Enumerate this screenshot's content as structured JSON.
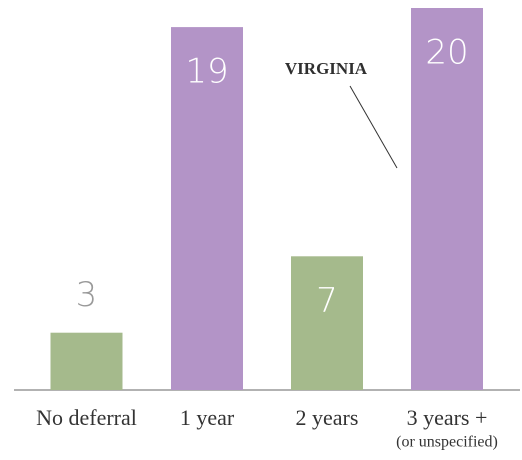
{
  "chart_data": {
    "type": "bar",
    "categories": [
      "No deferral",
      "1 year",
      "2 years",
      "3 years +"
    ],
    "category_note": "(or unspecified)",
    "values": [
      3,
      19,
      7,
      20
    ],
    "colors": [
      "#a5ba8c",
      "#b394c7",
      "#a5ba8c",
      "#b394c7"
    ],
    "ylim": [
      0,
      20
    ],
    "annotation": "VIRGINIA"
  }
}
